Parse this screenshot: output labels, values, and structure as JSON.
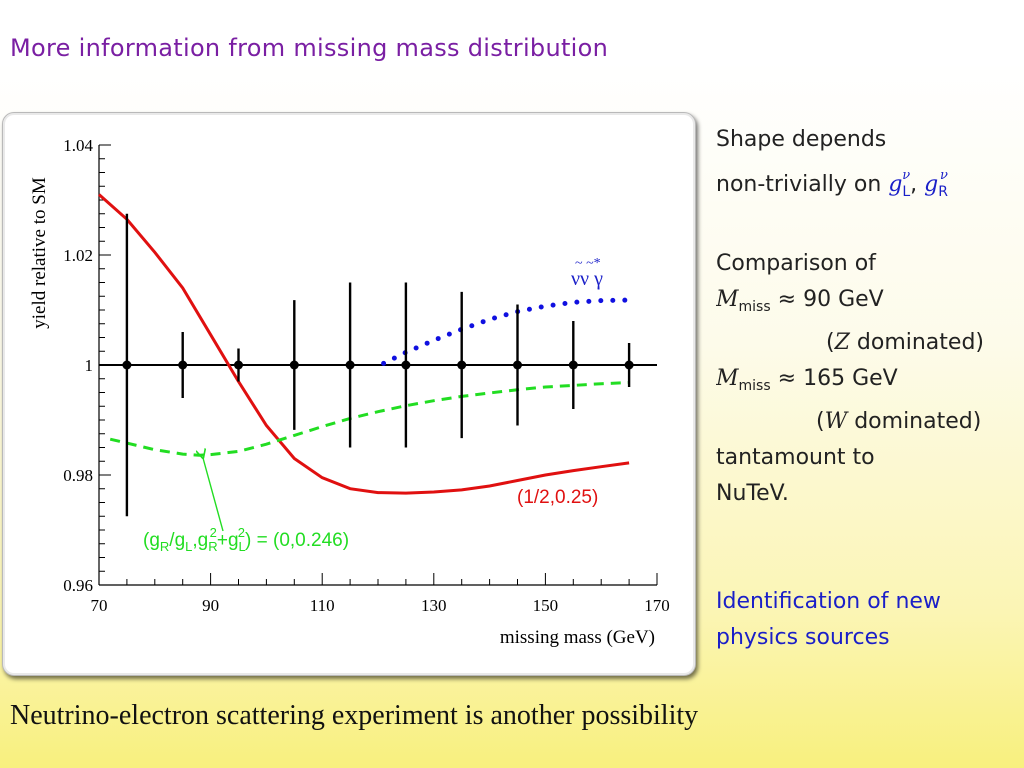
{
  "slide": {
    "title": "More information from missing mass distribution",
    "footer": "Neutrino-electron scattering experiment is another possibility"
  },
  "side_text": {
    "shape_line1": "Shape depends",
    "shape_line2": "non-trivially on",
    "g_symbol": "g",
    "g_sup": "ν",
    "g_sub_L": "L",
    "g_sub_R": "R",
    "comma": ",",
    "comparison": "Comparison of",
    "m_symbol": "M",
    "m_sub": "miss",
    "approx_90": "≈ 90 GeV",
    "z_open": "(",
    "z_symbol": "Z",
    "z_rest": "dominated)",
    "approx_165": "≈ 165 GeV",
    "w_open": "(",
    "w_symbol": "W",
    "w_rest": "dominated)",
    "tantamount": "tantamount to",
    "nutev": "NuTeV.",
    "ident_line1": "Identification of new",
    "ident_line2": "physics sources"
  },
  "colors": {
    "title": "#7a1fa3",
    "red_curve": "#e01010",
    "green_curve": "#22dd22",
    "blue_curve": "#1010e0",
    "data_points": "#000000",
    "accent_text": "#1a1fc8"
  },
  "chart_data": {
    "type": "line",
    "title": "",
    "xlabel": "missing mass (GeV)",
    "ylabel": "yield relative to SM",
    "xlim": [
      70,
      170
    ],
    "ylim": [
      0.96,
      1.04
    ],
    "x_ticks": [
      "70",
      "90",
      "110",
      "130",
      "150",
      "170"
    ],
    "y_ticks": [
      "0.96",
      "0.98",
      "1",
      "1.02",
      "1.04"
    ],
    "reference_line": 1.0,
    "series": [
      {
        "name": "(1/2,0.25)",
        "style": "solid",
        "color": "#e01010",
        "x": [
          70,
          75,
          80,
          85,
          90,
          95,
          100,
          105,
          110,
          115,
          120,
          125,
          130,
          135,
          140,
          145,
          150,
          155,
          160,
          165
        ],
        "y": [
          1.031,
          1.0265,
          1.0205,
          1.014,
          1.0055,
          0.997,
          0.989,
          0.983,
          0.9795,
          0.9775,
          0.9768,
          0.9767,
          0.9769,
          0.9773,
          0.978,
          0.979,
          0.98,
          0.9808,
          0.9815,
          0.9822
        ]
      },
      {
        "name": "(g_R/g_L, g_R²+g_L²) = (0,0.246)",
        "style": "dashed",
        "color": "#22dd22",
        "x": [
          72,
          75,
          80,
          85,
          88,
          90,
          95,
          100,
          105,
          110,
          115,
          120,
          125,
          130,
          135,
          140,
          145,
          150,
          155,
          160,
          165
        ],
        "y": [
          0.9865,
          0.9858,
          0.9846,
          0.9838,
          0.9836,
          0.9837,
          0.9843,
          0.9856,
          0.9872,
          0.9888,
          0.9903,
          0.9915,
          0.9926,
          0.9935,
          0.9943,
          0.9949,
          0.9955,
          0.996,
          0.9963,
          0.9966,
          0.9968
        ]
      },
      {
        "name": "ν̃ν̃* γ",
        "style": "dotted",
        "color": "#1010e0",
        "x": [
          121,
          125,
          130,
          135,
          140,
          145,
          150,
          155,
          160,
          165
        ],
        "y": [
          1.0003,
          1.0023,
          1.0045,
          1.0065,
          1.0083,
          1.0097,
          1.0107,
          1.0114,
          1.0117,
          1.0118
        ]
      }
    ],
    "points": {
      "x": [
        75,
        85,
        95,
        105,
        115,
        125,
        135,
        145,
        155,
        165
      ],
      "y": [
        1.0,
        1.0,
        1.0,
        1.0,
        1.0,
        1.0,
        1.0,
        1.0,
        1.0,
        1.0
      ],
      "err": [
        0.0275,
        0.006,
        0.003,
        0.0118,
        0.015,
        0.015,
        0.0133,
        0.011,
        0.008,
        0.004
      ]
    },
    "annotations": {
      "red_label": "(1/2,0.25)",
      "green_label": "(gR/gL,gR2+gL2) = (0,0.246)",
      "green_arrow_target": {
        "x": 88,
        "y": 0.9836
      },
      "blue_label": "ν̃ν̃* γ"
    }
  }
}
